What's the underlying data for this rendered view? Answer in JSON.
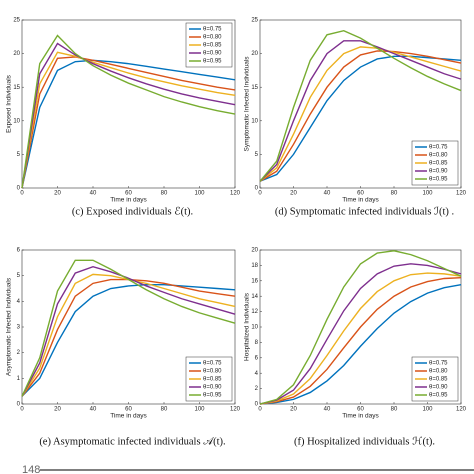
{
  "chart_data": [
    {
      "type": "line",
      "caption": "(c) Exposed individuals ℰ(t).",
      "xlabel": "Time in days",
      "ylabel": "Exposed Individuals",
      "x": [
        0,
        10,
        20,
        30,
        40,
        50,
        60,
        70,
        80,
        90,
        100,
        110,
        120
      ],
      "xlim": [
        0,
        120
      ],
      "xticks": [
        0,
        20,
        40,
        60,
        80,
        100,
        120
      ],
      "ylim": [
        0,
        25
      ],
      "yticks": [
        0,
        5,
        10,
        15,
        20,
        25
      ],
      "legend": "upper right",
      "series": [
        {
          "name": "θ=0.75",
          "color": "#0072bd",
          "values": [
            0,
            12,
            17.5,
            18.8,
            19,
            18.8,
            18.5,
            18.1,
            17.7,
            17.3,
            16.9,
            16.5,
            16.1
          ]
        },
        {
          "name": "θ=0.80",
          "color": "#d95319",
          "values": [
            0,
            14,
            19.3,
            19.5,
            19,
            18.4,
            17.8,
            17.2,
            16.6,
            16.0,
            15.5,
            15.0,
            14.6
          ]
        },
        {
          "name": "θ=0.85",
          "color": "#edb120",
          "values": [
            0,
            15.5,
            20.2,
            19.6,
            18.7,
            17.9,
            17.1,
            16.4,
            15.8,
            15.2,
            14.7,
            14.2,
            13.8
          ]
        },
        {
          "name": "θ=0.90",
          "color": "#7e2f8e",
          "values": [
            0,
            17,
            21.5,
            19.8,
            18.5,
            17.4,
            16.4,
            15.5,
            14.7,
            14.0,
            13.4,
            12.9,
            12.4
          ]
        },
        {
          "name": "θ=0.95",
          "color": "#77ac30",
          "values": [
            0,
            18.5,
            22.7,
            20,
            18.2,
            16.8,
            15.6,
            14.6,
            13.6,
            12.8,
            12.1,
            11.5,
            11.0
          ]
        }
      ]
    },
    {
      "type": "line",
      "caption": "(d) Symptomatic infected individuals ℐ(t) .",
      "xlabel": "Time in days",
      "ylabel": "Symptomatic Infected Individuals",
      "x": [
        0,
        10,
        20,
        30,
        40,
        50,
        60,
        70,
        80,
        90,
        100,
        110,
        120
      ],
      "xlim": [
        0,
        120
      ],
      "xticks": [
        0,
        20,
        40,
        60,
        80,
        100,
        120
      ],
      "ylim": [
        0,
        25
      ],
      "yticks": [
        0,
        5,
        10,
        15,
        20,
        25
      ],
      "legend": "lower right",
      "series": [
        {
          "name": "θ=0.75",
          "color": "#0072bd",
          "values": [
            1,
            2,
            5,
            9,
            13,
            16,
            18,
            19.2,
            19.6,
            19.6,
            19.4,
            19.2,
            19
          ]
        },
        {
          "name": "θ=0.80",
          "color": "#d95319",
          "values": [
            1,
            2.5,
            6.5,
            11,
            15,
            18,
            19.8,
            20.4,
            20.3,
            20,
            19.6,
            19.1,
            18.6
          ]
        },
        {
          "name": "θ=0.85",
          "color": "#edb120",
          "values": [
            1,
            3,
            8,
            13.5,
            17.5,
            20,
            21,
            20.8,
            20.2,
            19.5,
            18.8,
            18.1,
            17.4
          ]
        },
        {
          "name": "θ=0.90",
          "color": "#7e2f8e",
          "values": [
            1,
            3.5,
            10,
            16,
            20,
            21.9,
            21.9,
            21,
            20,
            19,
            18,
            17,
            16.2
          ]
        },
        {
          "name": "θ=0.95",
          "color": "#77ac30",
          "values": [
            1,
            4,
            12,
            19,
            22.8,
            23.4,
            22.3,
            20.8,
            19.3,
            17.9,
            16.6,
            15.5,
            14.5
          ]
        }
      ]
    },
    {
      "type": "line",
      "caption": "(e) Asymptomatic infected individuals 𝒜(t).",
      "xlabel": "Time in days",
      "ylabel": "Asymptomatic Infected Individuals",
      "x": [
        0,
        10,
        20,
        30,
        40,
        50,
        60,
        70,
        80,
        90,
        100,
        110,
        120
      ],
      "xlim": [
        0,
        120
      ],
      "xticks": [
        0,
        20,
        40,
        60,
        80,
        100,
        120
      ],
      "ylim": [
        0,
        6
      ],
      "yticks": [
        0,
        1,
        2,
        3,
        4,
        5,
        6
      ],
      "legend": "lower right",
      "series": [
        {
          "name": "θ=0.75",
          "color": "#0072bd",
          "values": [
            0.3,
            1,
            2.4,
            3.6,
            4.2,
            4.5,
            4.6,
            4.65,
            4.65,
            4.6,
            4.55,
            4.5,
            4.45
          ]
        },
        {
          "name": "θ=0.80",
          "color": "#d95319",
          "values": [
            0.3,
            1.2,
            2.9,
            4.2,
            4.7,
            4.85,
            4.85,
            4.8,
            4.7,
            4.55,
            4.4,
            4.3,
            4.2
          ]
        },
        {
          "name": "θ=0.85",
          "color": "#edb120",
          "values": [
            0.3,
            1.4,
            3.4,
            4.7,
            5.05,
            5.0,
            4.85,
            4.7,
            4.5,
            4.3,
            4.1,
            3.95,
            3.8
          ]
        },
        {
          "name": "θ=0.90",
          "color": "#7e2f8e",
          "values": [
            0.3,
            1.6,
            3.9,
            5.1,
            5.35,
            5.15,
            4.9,
            4.6,
            4.35,
            4.1,
            3.9,
            3.7,
            3.5
          ]
        },
        {
          "name": "θ=0.95",
          "color": "#77ac30",
          "values": [
            0.3,
            1.8,
            4.4,
            5.6,
            5.6,
            5.25,
            4.85,
            4.45,
            4.1,
            3.8,
            3.55,
            3.35,
            3.15
          ]
        }
      ]
    },
    {
      "type": "line",
      "caption": "(f) Hospitalized individuals ℋ(t).",
      "xlabel": "Time in days",
      "ylabel": "Hospitalized Individuals",
      "x": [
        0,
        10,
        20,
        30,
        40,
        50,
        60,
        70,
        80,
        90,
        100,
        110,
        120
      ],
      "xlim": [
        0,
        120
      ],
      "xticks": [
        0,
        20,
        40,
        60,
        80,
        100,
        120
      ],
      "ylim": [
        0,
        20
      ],
      "yticks": [
        0,
        2,
        4,
        6,
        8,
        10,
        12,
        14,
        16,
        18,
        20
      ],
      "legend": "lower right",
      "series": [
        {
          "name": "θ=0.75",
          "color": "#0072bd",
          "values": [
            0,
            0.2,
            0.6,
            1.5,
            3,
            5,
            7.5,
            9.8,
            11.8,
            13.3,
            14.4,
            15.1,
            15.5
          ]
        },
        {
          "name": "θ=0.80",
          "color": "#d95319",
          "values": [
            0,
            0.3,
            0.9,
            2.3,
            4.5,
            7.3,
            10,
            12.3,
            14,
            15.2,
            15.9,
            16.3,
            16.4
          ]
        },
        {
          "name": "θ=0.85",
          "color": "#edb120",
          "values": [
            0,
            0.4,
            1.3,
            3.3,
            6.3,
            9.5,
            12.4,
            14.6,
            16,
            16.8,
            17,
            16.9,
            16.6
          ]
        },
        {
          "name": "θ=0.90",
          "color": "#7e2f8e",
          "values": [
            0,
            0.5,
            1.8,
            4.6,
            8.4,
            12.1,
            15,
            16.9,
            17.9,
            18.2,
            18,
            17.5,
            16.9
          ]
        },
        {
          "name": "θ=0.95",
          "color": "#77ac30",
          "values": [
            0,
            0.6,
            2.5,
            6.3,
            11,
            15.2,
            18.2,
            19.6,
            19.9,
            19.4,
            18.6,
            17.6,
            16.6
          ]
        }
      ]
    }
  ],
  "page_number": "148"
}
